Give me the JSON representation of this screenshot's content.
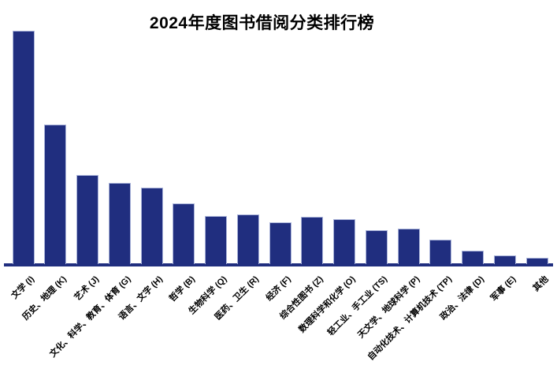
{
  "title": "2024年度图书借阅分类排行榜",
  "colors": {
    "bar_fill": "#202E7F",
    "bar_edge": "#A9B3D9",
    "axis_line": "#202E7F",
    "background": "#FFFFFF",
    "text": "#000000"
  },
  "chart_data": {
    "type": "bar",
    "title": "2024年度图书借阅分类排行榜",
    "categories": [
      "文学 (I)",
      "历史、地理 (K)",
      "艺术 (J)",
      "文化、科学、教育、体育 (G)",
      "语言、文字 (H)",
      "哲学 (B)",
      "生物科学 (Q)",
      "医药、卫生 (R)",
      "经济 (F)",
      "综合性图书 (Z)",
      "数理科学和化学 (O)",
      "轻工业、手工业 (TS)",
      "天文学、地球科学 (P)",
      "自动化技术、计算机技术 (TP)",
      "政治、法律 (D)",
      "军事 (E)",
      "其他"
    ],
    "values": [
      296,
      177,
      113,
      103,
      97,
      77,
      61,
      63,
      53,
      60,
      57,
      43,
      45,
      31,
      17,
      11,
      8
    ],
    "value_unit": "relative bar height in pixels (no y-axis scale shown in chart)",
    "xlabel": "",
    "ylabel": "",
    "ylim": [
      0,
      310
    ],
    "grid": false,
    "legend": false,
    "x_tick_label_rotation_deg": 45,
    "bar_color": "#202E7F"
  }
}
